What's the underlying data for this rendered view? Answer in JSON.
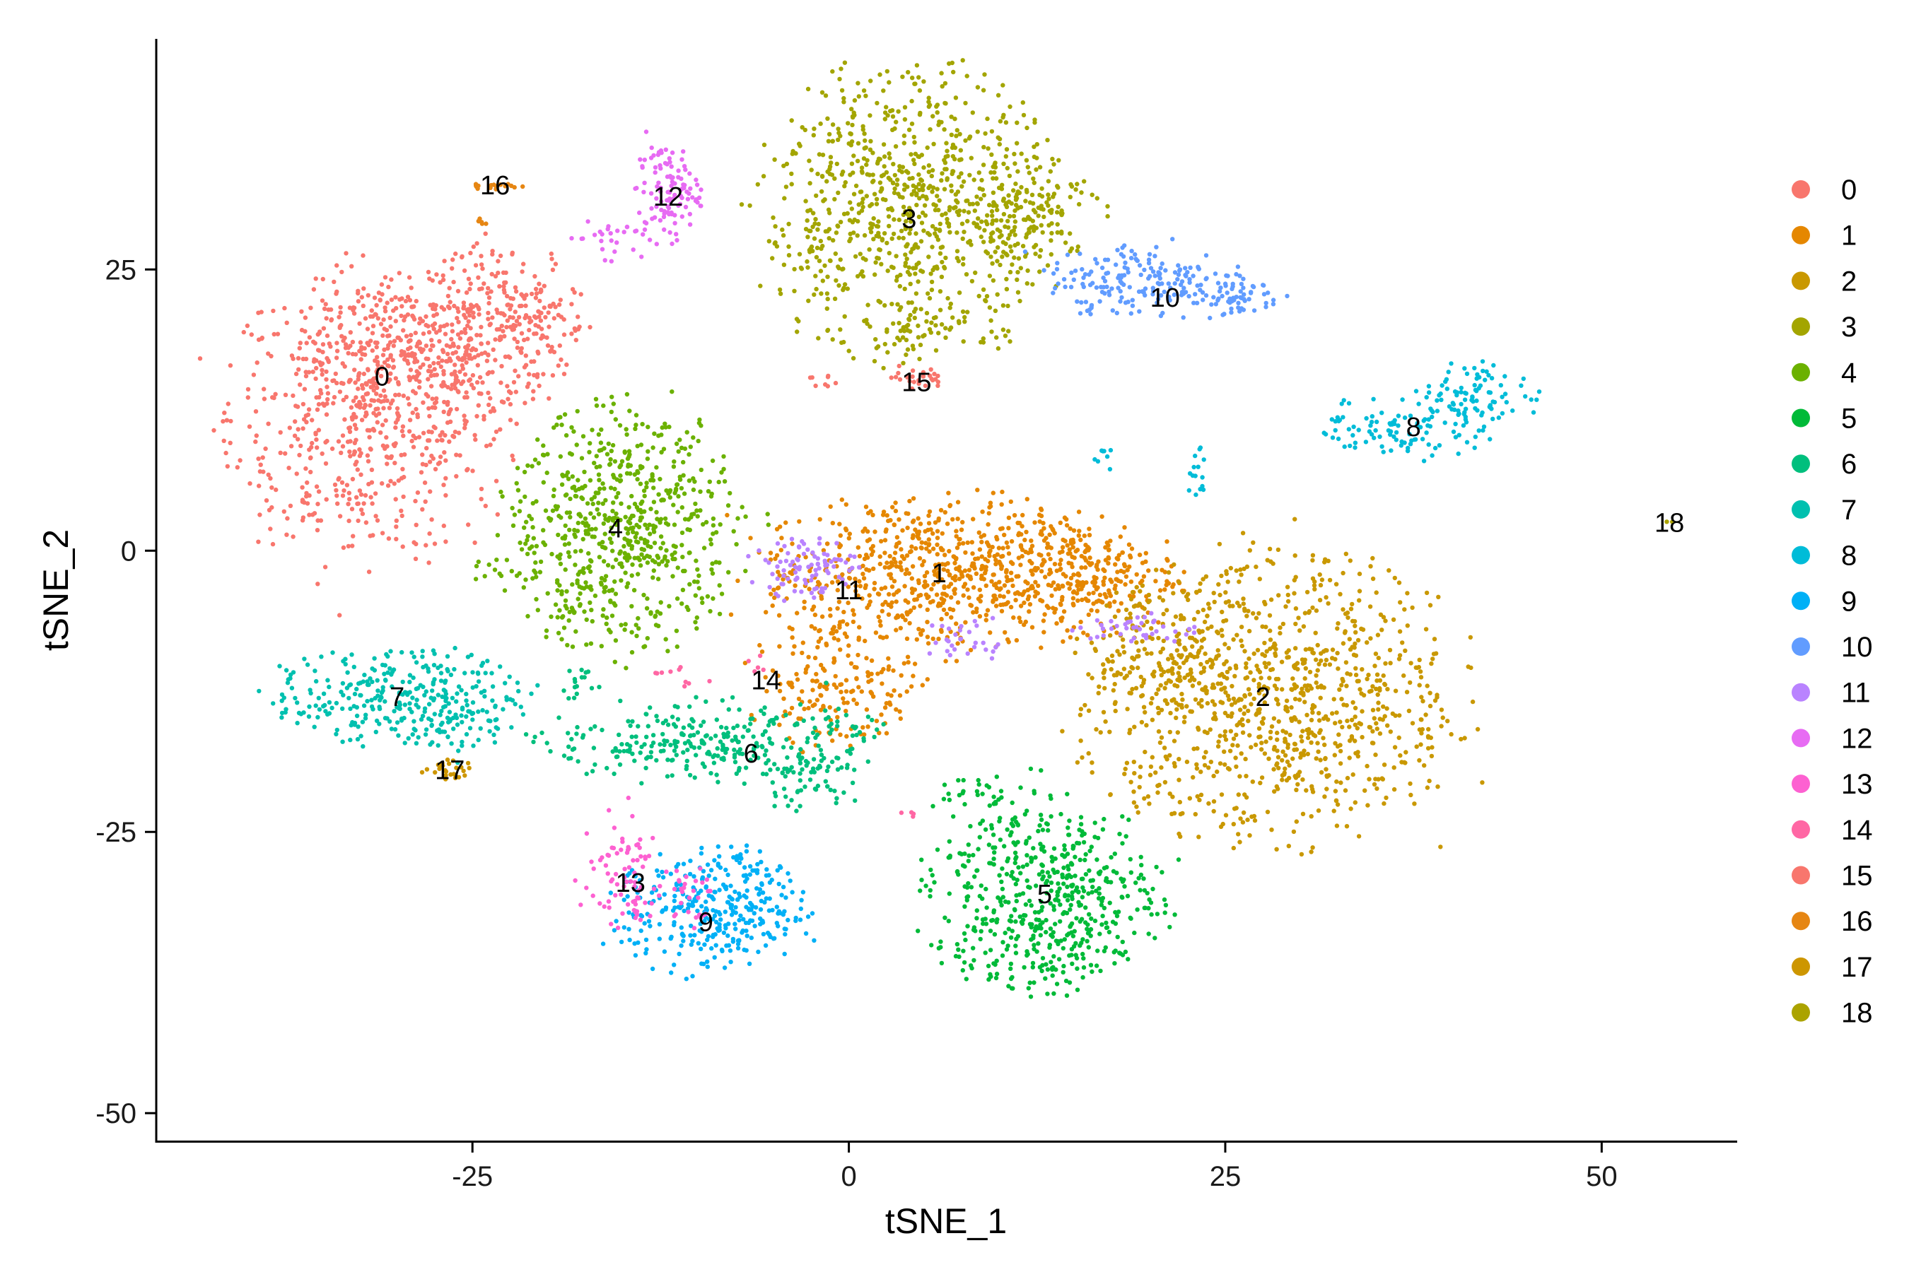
{
  "chart_data": {
    "type": "scatter",
    "title": "",
    "xlabel": "tSNE_1",
    "ylabel": "tSNE_2",
    "xlim": [
      -46,
      59
    ],
    "ylim": [
      -52.5,
      45.5
    ],
    "x_ticks": [
      -25,
      0,
      25,
      50
    ],
    "x_tick_labels": [
      "-25",
      "0",
      "25",
      "50"
    ],
    "y_ticks": [
      -50,
      -25,
      0,
      25
    ],
    "y_tick_labels": [
      "-50",
      "-25",
      "0",
      "25"
    ],
    "grid": false,
    "legend_position": "right",
    "legend": [
      "0",
      "1",
      "2",
      "3",
      "4",
      "5",
      "6",
      "7",
      "8",
      "9",
      "10",
      "11",
      "12",
      "13",
      "14",
      "15",
      "16",
      "17",
      "18"
    ],
    "colors": [
      "#F8766D",
      "#E58700",
      "#C99800",
      "#A3A500",
      "#6BB100",
      "#00BA38",
      "#00BF7D",
      "#00C0AF",
      "#00BCD8",
      "#00B0F6",
      "#619CFF",
      "#B983FF",
      "#E76BF3",
      "#FD61D1",
      "#FF67A4",
      "#F8766D",
      "#E68613",
      "#CD9600",
      "#ABA300"
    ],
    "cluster_labels": [
      {
        "label": "0",
        "x": -31.0,
        "y": 15.5
      },
      {
        "label": "1",
        "x": 6.0,
        "y": -2.0
      },
      {
        "label": "2",
        "x": 27.5,
        "y": -13.0
      },
      {
        "label": "3",
        "x": 4.0,
        "y": 29.5
      },
      {
        "label": "4",
        "x": -15.5,
        "y": 2.0
      },
      {
        "label": "5",
        "x": 13.0,
        "y": -30.5
      },
      {
        "label": "6",
        "x": -6.5,
        "y": -18.0
      },
      {
        "label": "7",
        "x": -30.0,
        "y": -13.0
      },
      {
        "label": "8",
        "x": 37.5,
        "y": 11.0
      },
      {
        "label": "9",
        "x": -9.5,
        "y": -33.0
      },
      {
        "label": "10",
        "x": 21.0,
        "y": 22.5
      },
      {
        "label": "11",
        "x": 0.0,
        "y": -3.5
      },
      {
        "label": "12",
        "x": -12.0,
        "y": 31.5
      },
      {
        "label": "13",
        "x": -14.5,
        "y": -29.5
      },
      {
        "label": "14",
        "x": -5.5,
        "y": -11.5
      },
      {
        "label": "15",
        "x": 4.5,
        "y": 15.0
      },
      {
        "label": "16",
        "x": -23.5,
        "y": 32.5
      },
      {
        "label": "17",
        "x": -26.5,
        "y": -19.5
      },
      {
        "label": "18",
        "x": 54.5,
        "y": 2.5
      }
    ],
    "series": [
      {
        "name": "0",
        "blobs": [
          {
            "cx": -32,
            "cy": 12,
            "rx": 6.5,
            "ry": 9,
            "n": 650
          },
          {
            "cx": -27,
            "cy": 18,
            "rx": 6,
            "ry": 5,
            "n": 350
          },
          {
            "cx": -23,
            "cy": 22,
            "rx": 4,
            "ry": 4,
            "n": 120
          },
          {
            "cx": -20,
            "cy": 20,
            "rx": 2,
            "ry": 3,
            "n": 40
          }
        ]
      },
      {
        "name": "1",
        "blobs": [
          {
            "cx": 6,
            "cy": -2,
            "rx": 8.5,
            "ry": 5,
            "n": 700
          },
          {
            "cx": -1,
            "cy": -12,
            "rx": 4,
            "ry": 4,
            "n": 180
          },
          {
            "cx": 15,
            "cy": -2,
            "rx": 5,
            "ry": 3.5,
            "n": 220
          }
        ]
      },
      {
        "name": "2",
        "blobs": [
          {
            "cx": 28,
            "cy": -13,
            "rx": 9,
            "ry": 9,
            "n": 1000
          },
          {
            "cx": 21,
            "cy": -9,
            "rx": 3,
            "ry": 4,
            "n": 100
          }
        ]
      },
      {
        "name": "3",
        "blobs": [
          {
            "cx": 4,
            "cy": 30,
            "rx": 7,
            "ry": 9,
            "n": 850
          },
          {
            "cx": 12,
            "cy": 30,
            "rx": 3.5,
            "ry": 3,
            "n": 120
          },
          {
            "cx": 4,
            "cy": 19,
            "rx": 0.8,
            "ry": 2,
            "n": 15
          }
        ]
      },
      {
        "name": "4",
        "blobs": [
          {
            "cx": -15,
            "cy": 2,
            "rx": 5.5,
            "ry": 7.5,
            "n": 650
          },
          {
            "cx": -18,
            "cy": -5,
            "rx": 1.5,
            "ry": 2,
            "n": 20
          },
          {
            "cx": -23,
            "cy": -2,
            "rx": 1.5,
            "ry": 1,
            "n": 15
          }
        ]
      },
      {
        "name": "5",
        "blobs": [
          {
            "cx": 13,
            "cy": -31,
            "rx": 5.5,
            "ry": 6,
            "n": 550
          },
          {
            "cx": 10,
            "cy": -22,
            "rx": 3,
            "ry": 2,
            "n": 40
          }
        ]
      },
      {
        "name": "6",
        "blobs": [
          {
            "cx": -9,
            "cy": -17,
            "rx": 8,
            "ry": 2.5,
            "n": 300
          },
          {
            "cx": -3,
            "cy": -20,
            "rx": 3,
            "ry": 2,
            "n": 60
          },
          {
            "cx": -18,
            "cy": -12,
            "rx": 1,
            "ry": 1.5,
            "n": 15
          }
        ]
      },
      {
        "name": "7",
        "blobs": [
          {
            "cx": -30,
            "cy": -13,
            "rx": 6,
            "ry": 3,
            "n": 300
          },
          {
            "cx": -26,
            "cy": -15,
            "rx": 2.5,
            "ry": 2.5,
            "n": 40
          }
        ]
      },
      {
        "name": "8",
        "blobs": [
          {
            "cx": 37,
            "cy": 11,
            "rx": 4,
            "ry": 2,
            "n": 110
          },
          {
            "cx": 42,
            "cy": 14,
            "rx": 3,
            "ry": 2,
            "n": 80
          },
          {
            "cx": 23,
            "cy": 7,
            "rx": 0.5,
            "ry": 2,
            "n": 15
          },
          {
            "cx": 17,
            "cy": 8,
            "rx": 0.5,
            "ry": 1,
            "n": 8
          }
        ]
      },
      {
        "name": "9",
        "blobs": [
          {
            "cx": -9,
            "cy": -32,
            "rx": 4.5,
            "ry": 4,
            "n": 350
          }
        ]
      },
      {
        "name": "10",
        "blobs": [
          {
            "cx": 20,
            "cy": 24,
            "rx": 5,
            "ry": 2.5,
            "n": 200
          },
          {
            "cx": 26,
            "cy": 22.5,
            "rx": 2,
            "ry": 1,
            "n": 40
          }
        ]
      },
      {
        "name": "11",
        "blobs": [
          {
            "cx": -3,
            "cy": -1.5,
            "rx": 2.5,
            "ry": 2,
            "n": 90
          },
          {
            "cx": 8,
            "cy": -8,
            "rx": 2,
            "ry": 1.5,
            "n": 30
          },
          {
            "cx": 19,
            "cy": -7,
            "rx": 3,
            "ry": 1,
            "n": 40
          }
        ]
      },
      {
        "name": "12",
        "blobs": [
          {
            "cx": -12,
            "cy": 32,
            "rx": 1.5,
            "ry": 3,
            "n": 110
          },
          {
            "cx": -16,
            "cy": 28,
            "rx": 2,
            "ry": 1.5,
            "n": 30
          }
        ]
      },
      {
        "name": "13",
        "blobs": [
          {
            "cx": -15,
            "cy": -29,
            "rx": 2,
            "ry": 4,
            "n": 80
          },
          {
            "cx": -11,
            "cy": -31,
            "rx": 1.5,
            "ry": 2,
            "n": 30
          }
        ]
      },
      {
        "name": "14",
        "blobs": [
          {
            "cx": -11,
            "cy": -11,
            "rx": 1.5,
            "ry": 1.5,
            "n": 10
          },
          {
            "cx": -6,
            "cy": -10,
            "rx": 0.5,
            "ry": 1,
            "n": 5
          },
          {
            "cx": 4,
            "cy": -23.5,
            "rx": 0.5,
            "ry": 0.2,
            "n": 4
          }
        ]
      },
      {
        "name": "15",
        "blobs": [
          {
            "cx": 4.5,
            "cy": 15.5,
            "rx": 1.2,
            "ry": 1,
            "n": 25
          },
          {
            "cx": -1.5,
            "cy": 15,
            "rx": 1,
            "ry": 0.5,
            "n": 8
          }
        ]
      },
      {
        "name": "16",
        "blobs": [
          {
            "cx": -23.5,
            "cy": 32.5,
            "rx": 1.2,
            "ry": 0.4,
            "n": 18
          },
          {
            "cx": -24.5,
            "cy": 29.5,
            "rx": 0.4,
            "ry": 0.8,
            "n": 6
          }
        ]
      },
      {
        "name": "17",
        "blobs": [
          {
            "cx": -26.5,
            "cy": -19.5,
            "rx": 1.2,
            "ry": 0.6,
            "n": 25
          }
        ]
      },
      {
        "name": "18",
        "blobs": [
          {
            "cx": 54.5,
            "cy": 2.5,
            "rx": 0.3,
            "ry": 0.3,
            "n": 2
          }
        ]
      }
    ]
  }
}
